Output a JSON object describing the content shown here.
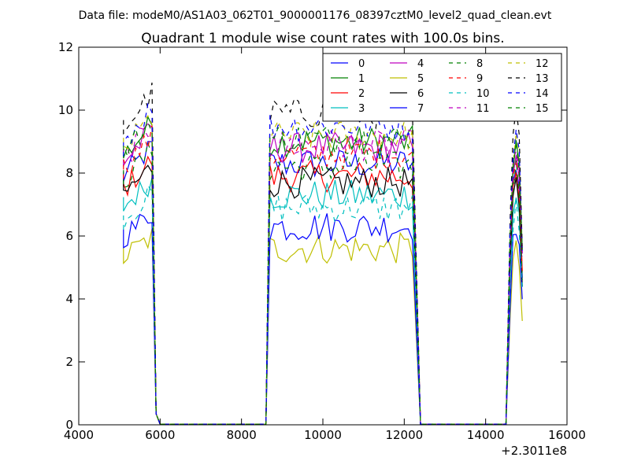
{
  "header": {
    "data_file": "Data file: modeM0/AS1A03_062T01_9000001176_08397cztM0_level2_quad_clean.evt"
  },
  "chart_data": {
    "type": "line",
    "title": "Quadrant 1 module wise count rates with 100.0s bins.",
    "xlabel": "",
    "ylabel": "",
    "x_offset_label": "+2.3011e8",
    "xlim": [
      4000,
      16000
    ],
    "ylim": [
      0,
      12
    ],
    "xticks": [
      4000,
      6000,
      8000,
      10000,
      12000,
      14000,
      16000
    ],
    "yticks": [
      0,
      2,
      4,
      6,
      8,
      10,
      12
    ],
    "xtick_labels": [
      "4000",
      "6000",
      "8000",
      "10000",
      "12000",
      "14000",
      "16000"
    ],
    "ytick_labels": [
      "0",
      "2",
      "4",
      "6",
      "8",
      "10",
      "12"
    ],
    "grid": false,
    "legend_position": "top-right",
    "legend_columns": 4,
    "time_segments": [
      {
        "start": 5100,
        "end": 5800
      },
      {
        "start": 8700,
        "end": 12200
      },
      {
        "start": 14600,
        "end": 14900
      }
    ],
    "series": [
      {
        "name": "0",
        "color": "#0000ff",
        "dash": false,
        "level": 8.3
      },
      {
        "name": "1",
        "color": "#008000",
        "dash": false,
        "level": 9.0
      },
      {
        "name": "2",
        "color": "#ff0000",
        "dash": false,
        "level": 7.9
      },
      {
        "name": "3",
        "color": "#00bfbf",
        "dash": false,
        "level": 7.3
      },
      {
        "name": "4",
        "color": "#bf00bf",
        "dash": false,
        "level": 8.8
      },
      {
        "name": "5",
        "color": "#bfbf00",
        "dash": false,
        "level": 5.6
      },
      {
        "name": "6",
        "color": "#000000",
        "dash": false,
        "level": 7.7
      },
      {
        "name": "7",
        "color": "#0000ff",
        "dash": false,
        "level": 6.3
      },
      {
        "name": "8",
        "color": "#008000",
        "dash": true,
        "level": 8.2
      },
      {
        "name": "9",
        "color": "#ff0000",
        "dash": true,
        "level": 8.6
      },
      {
        "name": "10",
        "color": "#00bfbf",
        "dash": true,
        "level": 6.9
      },
      {
        "name": "11",
        "color": "#bf00bf",
        "dash": true,
        "level": 8.9
      },
      {
        "name": "12",
        "color": "#bfbf00",
        "dash": true,
        "level": 9.2
      },
      {
        "name": "13",
        "color": "#000000",
        "dash": true,
        "level": 9.9
      },
      {
        "name": "14",
        "color": "#0000ff",
        "dash": true,
        "level": 9.5
      },
      {
        "name": "15",
        "color": "#008000",
        "dash": true,
        "level": 9.1
      }
    ]
  }
}
